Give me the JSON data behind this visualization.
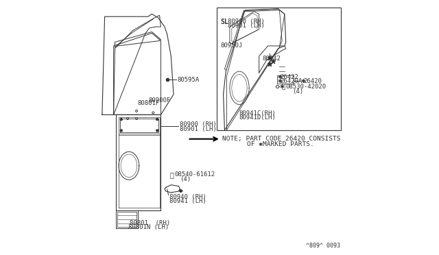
{
  "bg_color": "#ffffff",
  "line_color": "#333333",
  "text_color": "#333333",
  "fig_width": 6.4,
  "fig_height": 3.72,
  "dpi": 100,
  "ref_code": "^809^ 0093",
  "note_line1": "NOTE; PART CODE 26420 CONSISTS",
  "note_line2": "    OF ✱MARKED PARTS."
}
